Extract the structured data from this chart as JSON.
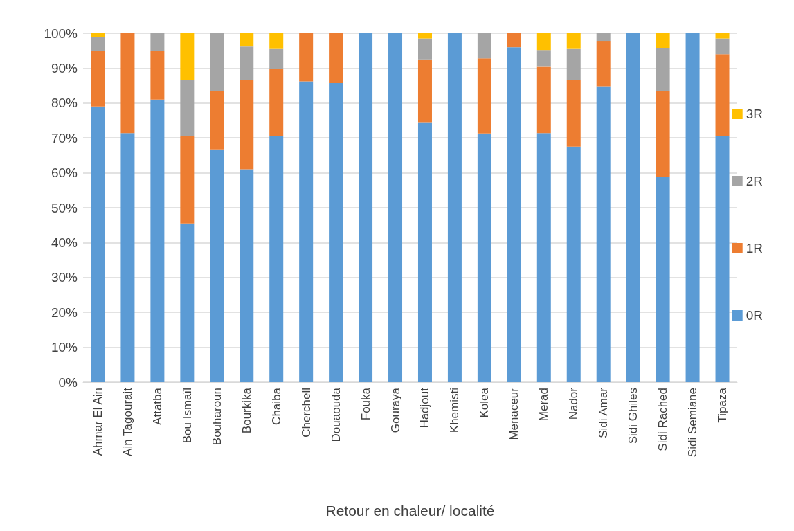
{
  "chart_data": {
    "type": "bar",
    "stacked": true,
    "xlabel": "Retour en chaleur/ localité",
    "categories": [
      "Ahmar El Ain",
      "Ain Tagourait",
      "Attatba",
      "Bou Ismaïl",
      "Bouharoun",
      "Bourkika",
      "Chaiba",
      "Cherchell",
      "Douaouda",
      "Fouka",
      "Gouraya",
      "Hadjout",
      "Khemisti",
      "Kolea",
      "Menaceur",
      "Merad",
      "Nador",
      "Sidi Amar",
      "Sidi Ghiles",
      "Sidi Rached",
      "Sidi Semiane",
      "Tipaza"
    ],
    "series": [
      {
        "name": "0R",
        "color": "#5b9bd5",
        "values": [
          79,
          71.4,
          81,
          45.5,
          66.7,
          61,
          70.5,
          86.2,
          85.7,
          100,
          100,
          74.5,
          100,
          71.3,
          96,
          71.4,
          67.5,
          84.8,
          100,
          58.8,
          100,
          70.5
        ]
      },
      {
        "name": "1R",
        "color": "#ed7d31",
        "values": [
          16,
          28.6,
          14,
          25,
          16.7,
          25.6,
          19.2,
          13.8,
          14.3,
          0,
          0,
          18,
          0,
          21.5,
          4,
          19,
          19.2,
          13,
          0,
          24.7,
          0,
          23.5
        ]
      },
      {
        "name": "2R",
        "color": "#a5a5a5",
        "values": [
          4,
          0,
          5,
          16,
          16.6,
          9.6,
          5.8,
          0,
          0,
          0,
          0,
          6,
          0,
          7.2,
          0,
          4.8,
          8.8,
          2.2,
          0,
          12.3,
          0,
          4.5
        ]
      },
      {
        "name": "3R",
        "color": "#ffc000",
        "values": [
          1,
          0,
          0,
          13.5,
          0,
          3.8,
          4.5,
          0,
          0,
          0,
          0,
          1.5,
          0,
          0,
          0,
          4.8,
          4.5,
          0,
          0,
          4.2,
          0,
          1.5
        ]
      }
    ],
    "ylim": [
      0,
      100
    ],
    "yticks": [
      {
        "value": 0,
        "label": "0%"
      },
      {
        "value": 10,
        "label": "10%"
      },
      {
        "value": 20,
        "label": "20%"
      },
      {
        "value": 30,
        "label": "30%"
      },
      {
        "value": 40,
        "label": "40%"
      },
      {
        "value": 50,
        "label": "50%"
      },
      {
        "value": 60,
        "label": "60%"
      },
      {
        "value": 70,
        "label": "70%"
      },
      {
        "value": 80,
        "label": "80%"
      },
      {
        "value": 90,
        "label": "90%"
      },
      {
        "value": 100,
        "label": "100%"
      }
    ],
    "grid": "y",
    "legend": "right"
  }
}
